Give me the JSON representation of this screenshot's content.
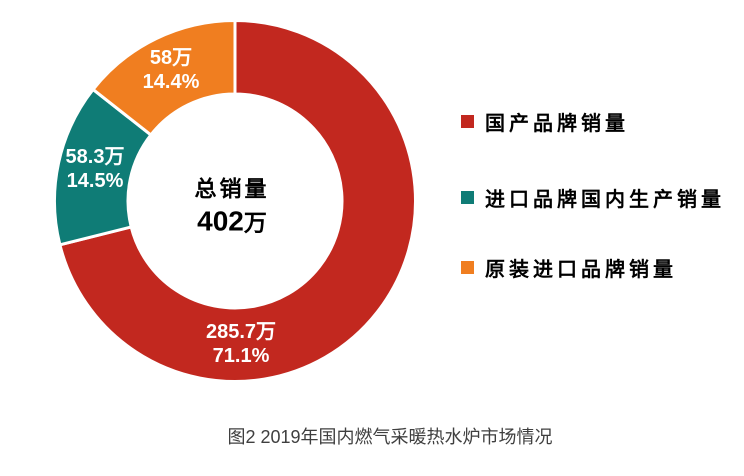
{
  "figure": {
    "caption": "图2 2019年国内燃气采暖热水炉市场情况"
  },
  "chart_data": {
    "type": "pie",
    "subtype": "donut",
    "title": "图2 2019年国内燃气采暖热水炉市场情况",
    "unit": "万",
    "total_value": 402,
    "center_label": {
      "line1": "总销量",
      "total_value": "402",
      "total_unit": "万"
    },
    "legend_position": "right",
    "start_angle_deg": 0,
    "direction": "clockwise",
    "series": [
      {
        "id": "domestic",
        "name": "国产品牌销量",
        "value": 285.7,
        "pct": 71.1,
        "value_label": "285.7万",
        "pct_label": "71.1%",
        "color": "#C2281F"
      },
      {
        "id": "imported-domestic-production",
        "name": "进口品牌国内生产销量",
        "value": 58.3,
        "pct": 14.5,
        "value_label": "58.3万",
        "pct_label": "14.5%",
        "color": "#0F7C76"
      },
      {
        "id": "original-imported",
        "name": "原装进口品牌销量",
        "value": 58,
        "pct": 14.4,
        "value_label": "58万",
        "pct_label": "14.4%",
        "color": "#F07E20"
      }
    ]
  }
}
